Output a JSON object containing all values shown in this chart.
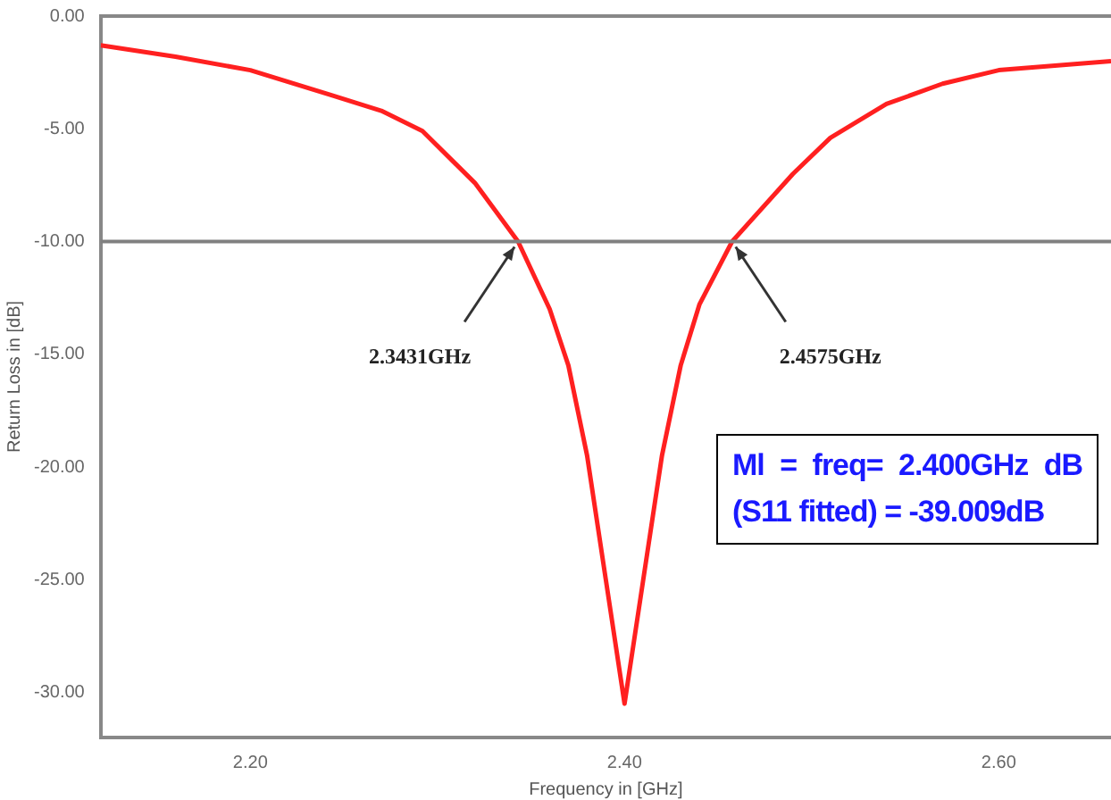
{
  "chart_data": {
    "type": "line",
    "xlabel": "Frequency in [GHz]",
    "ylabel": "Return Loss in [dB]",
    "x": [
      2.12,
      2.16,
      2.2,
      2.243,
      2.27,
      2.292,
      2.32,
      2.3431,
      2.36,
      2.37,
      2.38,
      2.39,
      2.4,
      2.41,
      2.42,
      2.43,
      2.44,
      2.4575,
      2.49,
      2.51,
      2.54,
      2.57,
      2.6,
      2.66
    ],
    "series": [
      {
        "color": "#ff2020",
        "values": [
          -1.3,
          -1.8,
          -2.4,
          -3.5,
          -4.2,
          -5.1,
          -7.4,
          -10,
          -13,
          -15.5,
          -19.5,
          -25,
          -30.5,
          -25,
          -19.5,
          -15.5,
          -12.8,
          -10,
          -7,
          -5.4,
          -3.9,
          -3,
          -2.4,
          -2
        ]
      }
    ],
    "xlim": [
      2.12,
      2.66
    ],
    "ylim": [
      -32,
      0
    ],
    "xticks": [
      {
        "value": 2.2,
        "label": "2.20"
      },
      {
        "value": 2.4,
        "label": "2.40"
      },
      {
        "value": 2.6,
        "label": "2.60"
      }
    ],
    "yticks": [
      {
        "value": -30,
        "label": "-30.00"
      },
      {
        "value": -25,
        "label": "-25.00"
      },
      {
        "value": -20,
        "label": "-20.00"
      },
      {
        "value": -15,
        "label": "-15.00"
      },
      {
        "value": -10,
        "label": "-10.00"
      },
      {
        "value": -5,
        "label": "-5.00"
      },
      {
        "value": 0,
        "label": "0.00"
      }
    ],
    "ref_lines": [
      {
        "axis": "y",
        "value": -10,
        "color": "#808080"
      }
    ],
    "annotations": [
      {
        "text": "2.3431GHz",
        "x": 2.3431,
        "y": -10
      },
      {
        "text": "2.4575GHz",
        "x": 2.4575,
        "y": -10
      },
      "Ml = freq= 2.400GHz dB (S11 fitted) = -39.009dB"
    ],
    "grid": false,
    "legend": false,
    "marker": "none",
    "line_style": "solid"
  }
}
